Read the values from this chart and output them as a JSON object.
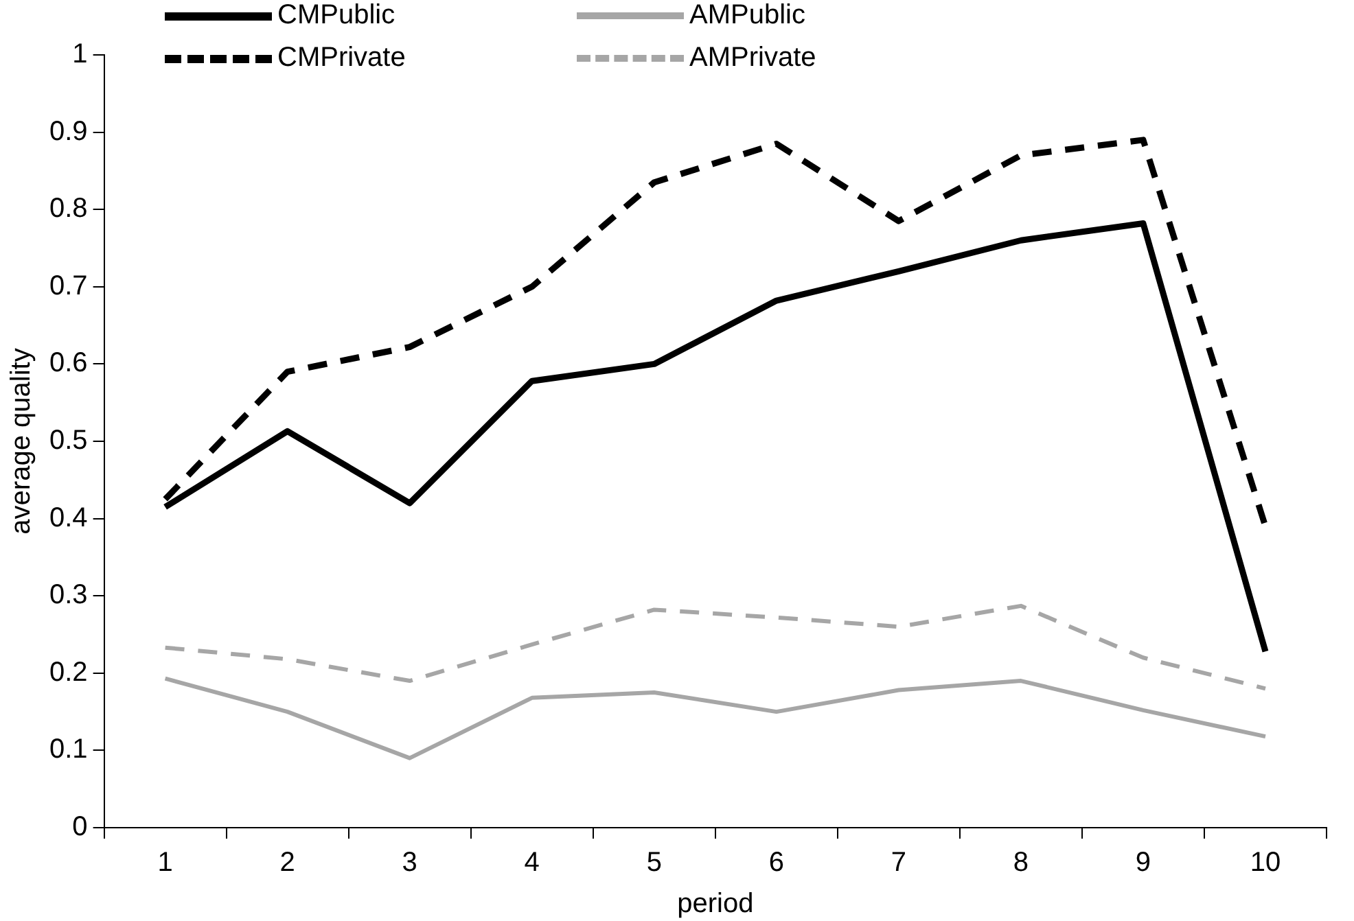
{
  "chart_data": {
    "type": "line",
    "xlabel": "period",
    "ylabel": "average quality",
    "categories": [
      "1",
      "2",
      "3",
      "4",
      "5",
      "6",
      "7",
      "8",
      "9",
      "10"
    ],
    "ylim": [
      0,
      1
    ],
    "yticks": [
      0,
      {
        "value": 0.1,
        "label": "0.1"
      },
      {
        "value": 0.2,
        "label": "0.2"
      },
      {
        "value": 0.3,
        "label": "0.3"
      },
      {
        "value": 0.4,
        "label": "0.4"
      },
      {
        "value": 0.5,
        "label": "0.5"
      },
      {
        "value": 0.6,
        "label": "0.6"
      },
      {
        "value": 0.7,
        "label": "0.7"
      },
      {
        "value": 0.8,
        "label": "0.8"
      },
      {
        "value": 0.9,
        "label": "0.9"
      },
      1
    ],
    "grid": false,
    "legend": "top left",
    "marker": "none",
    "series": [
      {
        "name": "CMPublic",
        "color": "#000000",
        "line_style": "solid",
        "values": [
          0.415,
          0.513,
          0.42,
          0.578,
          0.6,
          0.682,
          0.72,
          0.76,
          0.782,
          0.228
        ]
      },
      {
        "name": "AMPublic",
        "color": "#a6a6a6",
        "line_style": "solid",
        "values": [
          0.193,
          0.15,
          0.09,
          0.168,
          0.175,
          0.15,
          0.178,
          0.19,
          0.152,
          0.118
        ]
      },
      {
        "name": "CMPrivate",
        "color": "#000000",
        "line_style": "dashed",
        "values": [
          0.425,
          0.59,
          0.622,
          0.7,
          0.835,
          0.885,
          0.785,
          0.87,
          0.89,
          0.39
        ]
      },
      {
        "name": "AMPrivate",
        "color": "#a6a6a6",
        "line_style": "dashed",
        "values": [
          0.233,
          0.218,
          0.19,
          0.237,
          0.282,
          0.272,
          0.26,
          0.287,
          0.22,
          0.18
        ]
      }
    ]
  }
}
